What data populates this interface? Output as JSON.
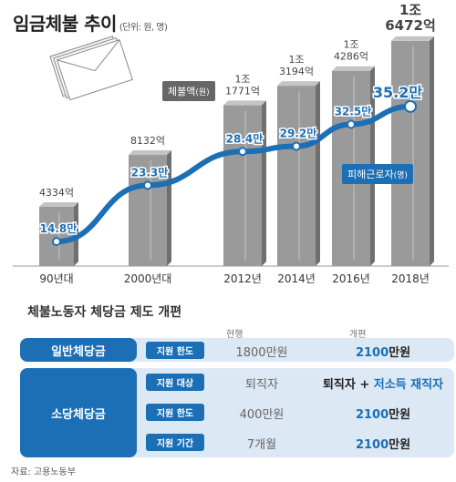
{
  "title": "임금체불 추이",
  "title_unit": "(단위: 원, 명)",
  "chart_data": {
    "type": "bar",
    "categories": [
      "90년대",
      "2000년대",
      "2012년",
      "2014년",
      "2016년",
      "2018년"
    ],
    "series": [
      {
        "name": "체불액(원)",
        "values": [
          433400000000,
          813200000000,
          1177100000000,
          1319400000000,
          1428600000000,
          1647200000000
        ],
        "labels": [
          "4334억",
          "8132억",
          "1조\n1771억",
          "1조\n3194억",
          "1조\n4286억",
          "1조\n6472억"
        ]
      },
      {
        "name": "피해근로자(명)",
        "values": [
          148000,
          233000,
          284000,
          292000,
          325000,
          352000
        ],
        "labels": [
          "14.8만",
          "23.3만",
          "28.4만",
          "29.2만",
          "32.5만",
          "35.2만"
        ]
      }
    ],
    "legend": {
      "bar": "체불액",
      "bar_unit": "(원)",
      "line": "피해근로자",
      "line_unit": "(명)"
    }
  },
  "reform": {
    "title": "체불노동자 체당금 제도 개편",
    "header_old": "현행",
    "header_new": "개편",
    "general": {
      "label": "일반체당금",
      "rows": [
        {
          "tag": "지원 한도",
          "old": "1800만원",
          "new_num": "2100",
          "new_rest": "만원"
        }
      ]
    },
    "small": {
      "label": "소당체당금",
      "rows": [
        {
          "tag": "지원 대상",
          "old": "퇴직자",
          "new_a": "퇴직자 + ",
          "new_b": "저소득 재직자"
        },
        {
          "tag": "지원 한도",
          "old": "400만원",
          "new_num": "2100",
          "new_rest": "만원"
        },
        {
          "tag": "지원 기간",
          "old": "7개월",
          "new_num": "2100",
          "new_rest": "만원"
        }
      ]
    }
  },
  "source": "자료: 고용노동부",
  "colors": {
    "bar": "#9a9a9a",
    "bar_top": "#c4c4c4",
    "bar_side": "#6f6f6f",
    "line": "#1c6fb4",
    "band_light": "#dce8f4",
    "background_band": "#eeeeee"
  }
}
